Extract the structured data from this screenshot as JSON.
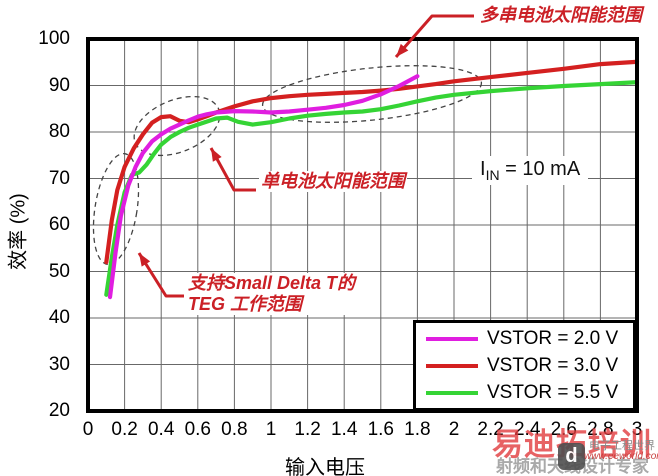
{
  "chart_data": {
    "type": "line",
    "xlabel": "输入电压",
    "ylabel": "效率 (%)",
    "xlim": [
      0,
      3
    ],
    "ylim": [
      20,
      100
    ],
    "grid": true,
    "legend_position": "bottom-right",
    "x_ticks": [
      "0",
      "0.2",
      "0.4",
      "0.6",
      "0.8",
      "1",
      "1.2",
      "1.4",
      "1.6",
      "1.8",
      "2",
      "2.2",
      "2.4",
      "2.6",
      "2.8",
      "3"
    ],
    "y_ticks": [
      "100",
      "90",
      "80",
      "70",
      "60",
      "50",
      "40",
      "30",
      "20"
    ],
    "condition": {
      "prefix": "I",
      "sub": "IN",
      "rest": " = 10 mA"
    },
    "annotation_color": "#cb2026",
    "annotations": {
      "multi_cell": "多串电池太阳能范围",
      "single_cell": "单电池太阳能范围",
      "teg_line1": "支持Small Delta T的",
      "teg_line2": "TEG 工作范围"
    },
    "series": [
      {
        "name": "VSTOR = 2.0 V",
        "color": "#e01ee0",
        "x": [
          0.12,
          0.15,
          0.18,
          0.22,
          0.26,
          0.3,
          0.35,
          0.4,
          0.45,
          0.5,
          0.55,
          0.6,
          0.65,
          0.7,
          0.8,
          0.9,
          1.0,
          1.1,
          1.2,
          1.3,
          1.4,
          1.5,
          1.6,
          1.7,
          1.8
        ],
        "y": [
          44.5,
          54,
          62,
          68.5,
          72.5,
          75.5,
          78,
          79.5,
          80.7,
          81.6,
          82.5,
          83.3,
          83.8,
          84.2,
          84.5,
          84.4,
          84.2,
          84.4,
          84.8,
          85.2,
          85.8,
          86.7,
          88.1,
          89.9,
          92
        ]
      },
      {
        "name": "VSTOR = 3.0 V",
        "color": "#d42020",
        "x": [
          0.1,
          0.13,
          0.16,
          0.2,
          0.25,
          0.3,
          0.35,
          0.4,
          0.45,
          0.5,
          0.55,
          0.6,
          0.65,
          0.7,
          0.8,
          0.9,
          1.0,
          1.1,
          1.2,
          1.3,
          1.4,
          1.5,
          1.6,
          1.7,
          1.8,
          1.9,
          2.0,
          2.2,
          2.4,
          2.6,
          2.8,
          3.0
        ],
        "y": [
          52,
          61,
          67.5,
          72.5,
          76.5,
          79.5,
          82,
          83.2,
          83.4,
          82.4,
          82.1,
          82.7,
          83.4,
          84.2,
          85.5,
          86.6,
          87.3,
          87.7,
          88,
          88.2,
          88.4,
          88.6,
          88.9,
          89.3,
          89.8,
          90.3,
          90.9,
          91.8,
          92.7,
          93.6,
          94.6,
          95.1
        ]
      },
      {
        "name": "VSTOR = 5.5 V",
        "color": "#35d435",
        "x": [
          0.1,
          0.13,
          0.16,
          0.2,
          0.24,
          0.28,
          0.32,
          0.36,
          0.4,
          0.45,
          0.5,
          0.55,
          0.6,
          0.7,
          0.76,
          0.82,
          0.9,
          1.0,
          1.1,
          1.2,
          1.3,
          1.4,
          1.5,
          1.6,
          1.7,
          1.8,
          1.9,
          2.0,
          2.2,
          2.4,
          2.6,
          2.8,
          3.0
        ],
        "y": [
          45,
          53,
          60,
          67,
          70.8,
          71.3,
          73,
          75.3,
          77.3,
          78.9,
          80,
          80.9,
          81.6,
          82.9,
          83.1,
          82.2,
          81.6,
          82.1,
          82.9,
          83.5,
          83.9,
          84.2,
          84.4,
          84.9,
          85.7,
          86.6,
          87.4,
          88,
          88.8,
          89.4,
          89.9,
          90.3,
          90.7
        ]
      }
    ]
  },
  "watermark": {
    "brand": "易迪拓培训",
    "tagline": "射频和天线设计专家",
    "logo_letter": "d",
    "logo_text": "电子工程世界",
    "logo_url": "www.eeworld.com.cn"
  }
}
